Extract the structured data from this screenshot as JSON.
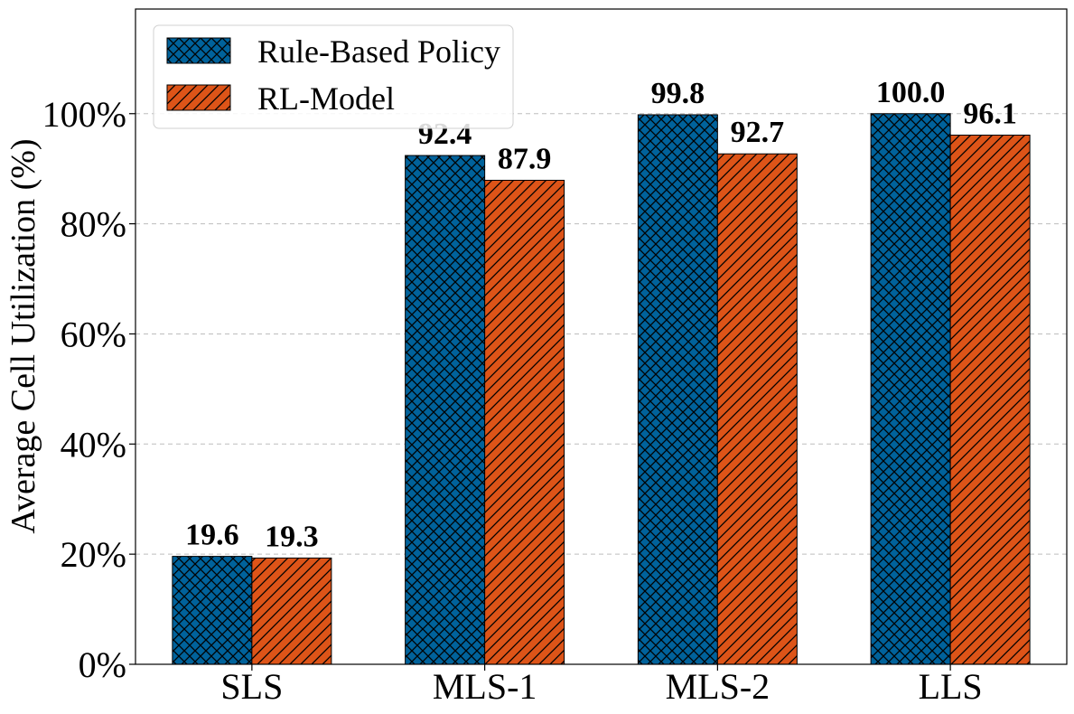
{
  "chart_data": {
    "type": "bar",
    "title": "",
    "xlabel": "",
    "ylabel": "Average Cell Utilization (%)",
    "categories": [
      "SLS",
      "MLS-1",
      "MLS-2",
      "LLS"
    ],
    "series": [
      {
        "name": "Rule-Based Policy",
        "values": [
          19.6,
          92.4,
          99.8,
          100.0
        ],
        "labels": [
          "19.6",
          "92.4",
          "99.8",
          "100.0"
        ],
        "color": "#00629b",
        "hatch": "cross-hatch"
      },
      {
        "name": "RL-Model",
        "values": [
          19.3,
          87.9,
          92.7,
          96.1
        ],
        "labels": [
          "19.3",
          "87.9",
          "92.7",
          "96.1"
        ],
        "color": "#dd5418",
        "hatch": "diagonal"
      }
    ],
    "ylim": [
      0,
      119
    ],
    "yticks": [
      0,
      20,
      40,
      60,
      80,
      100
    ],
    "ytick_labels": [
      "0%",
      "20%",
      "40%",
      "60%",
      "80%",
      "100%"
    ],
    "grid": "horizontal dashed",
    "legend_position": "top-left"
  }
}
